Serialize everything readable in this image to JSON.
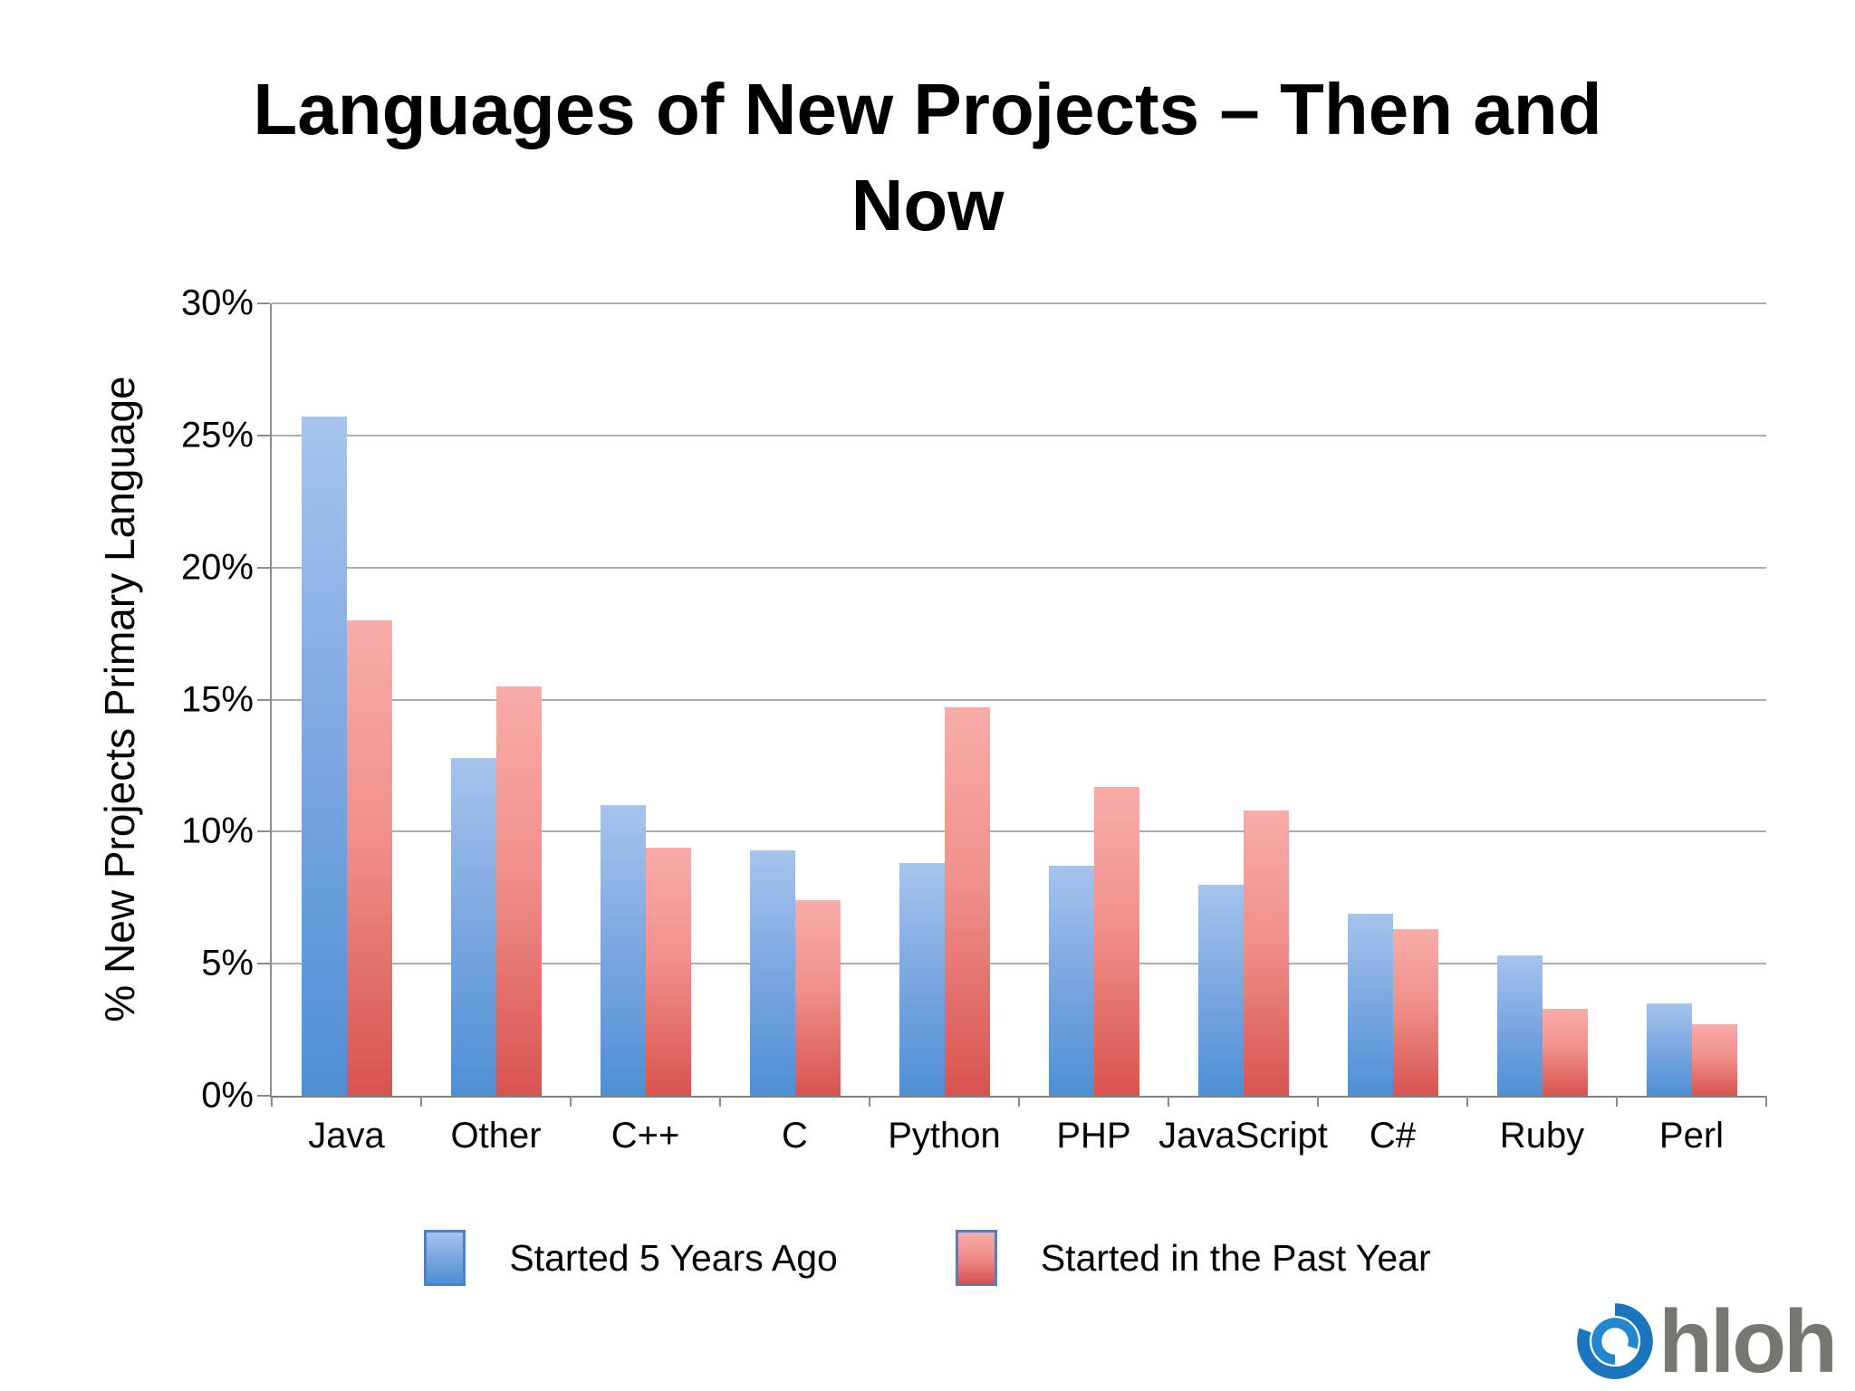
{
  "title_line1": "Languages of New Projects – Then and",
  "title_line2": "Now",
  "chart_data": {
    "type": "bar",
    "title": "Languages of New Projects – Then and Now",
    "ylabel": "% New Projects Primary Language",
    "xlabel": "",
    "ylim": [
      0,
      30
    ],
    "ytick_step": 5,
    "ytick_suffix": "%",
    "grid": true,
    "legend_position": "bottom",
    "categories": [
      "Java",
      "Other",
      "C++",
      "C",
      "Python",
      "PHP",
      "JavaScript",
      "C#",
      "Ruby",
      "Perl"
    ],
    "series": [
      {
        "name": "Started 5 Years Ago",
        "values": [
          25.7,
          12.8,
          11.0,
          9.3,
          8.8,
          8.7,
          8.0,
          6.9,
          5.3,
          3.5
        ],
        "colors": [
          "#A6C4ED",
          "#7FA9E2",
          "#4E8FD6"
        ],
        "legend_border": "#4F81BD"
      },
      {
        "name": "Started in the Past Year",
        "values": [
          18.0,
          15.5,
          9.4,
          7.4,
          14.7,
          11.7,
          10.8,
          6.3,
          3.3,
          2.7
        ],
        "colors": [
          "#F9ACA8",
          "#F0908C",
          "#D8534F"
        ],
        "legend_border": "#4F81BD"
      }
    ],
    "axis_color": "#8C8C8C",
    "grid_color": "#ADADAD",
    "baseline_color": "#808080"
  },
  "logo": {
    "text": "hloh",
    "icon": "ohloh-swirl-icon",
    "icon_color": "#1B75BC",
    "icon_color_inner": "#2287CE",
    "text_color": "#797672"
  }
}
